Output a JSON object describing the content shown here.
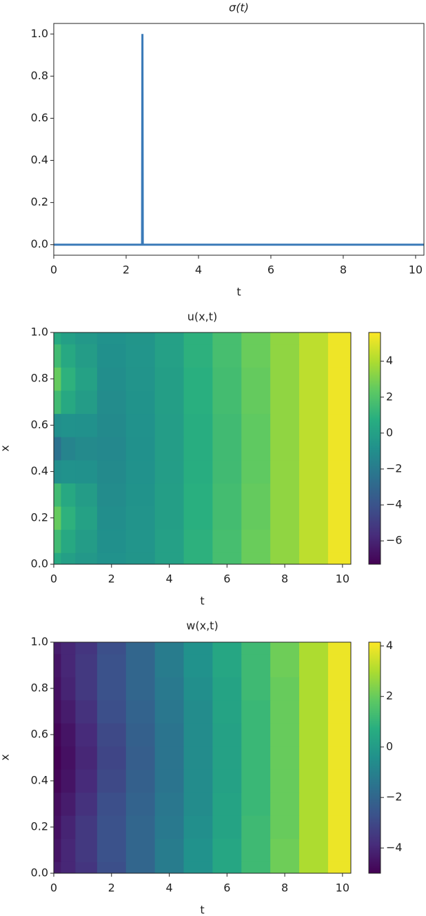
{
  "chart_data": [
    {
      "type": "line",
      "title": "σ(t)",
      "xlabel": "t",
      "x": [
        0,
        2.44,
        2.45,
        2.46,
        10.23
      ],
      "values": [
        0,
        0,
        1,
        0,
        0
      ],
      "color": "#3a7ab8",
      "xlim": [
        0,
        10.23
      ],
      "ylim": [
        -0.05,
        1.05
      ],
      "xticks": [
        0,
        2,
        4,
        6,
        8,
        10
      ],
      "yticks": [
        {
          "value": 0,
          "label": "0.0"
        },
        0.2,
        0.4,
        0.6,
        0.8,
        {
          "value": 1,
          "label": "1.0"
        }
      ]
    },
    {
      "type": "heatmap",
      "title": "u(x,t)",
      "xlabel": "t",
      "ylabel": "x",
      "colormap": "viridis",
      "x": [
        0,
        0.5,
        1,
        2,
        3,
        4,
        5,
        6,
        7,
        8,
        9,
        10
      ],
      "y": [
        0,
        0.1,
        0.2,
        0.3,
        0.4,
        0.5,
        0.6,
        0.7,
        0.8,
        0.9,
        1
      ],
      "z": [
        [
          0.5,
          -0.05,
          -0.48,
          -0.8,
          -0.6,
          0,
          0.9,
          1.7,
          2.6,
          3.4,
          4.3,
          5.3
        ],
        [
          1.5,
          0.45,
          -0.23,
          -0.9,
          -0.65,
          0,
          0.9,
          1.7,
          2.6,
          3.4,
          4.3,
          5.3
        ],
        [
          2.5,
          0.95,
          0.03,
          -1.0,
          -0.7,
          -0.1,
          0.8,
          1.6,
          2.5,
          3.4,
          4.3,
          5.3
        ],
        [
          1.5,
          0.45,
          -0.23,
          -1.1,
          -0.75,
          -0.1,
          0.8,
          1.6,
          2.5,
          3.4,
          4.3,
          5.3
        ],
        [
          -1,
          -0.8,
          -0.85,
          -1.2,
          -0.8,
          -0.2,
          0.7,
          1.5,
          2.4,
          3.4,
          4.3,
          5.3
        ],
        [
          -2.5,
          -1.55,
          -1.23,
          -1.3,
          -0.85,
          -0.2,
          0.7,
          1.5,
          2.4,
          3.4,
          4.3,
          5.3
        ],
        [
          -1,
          -0.8,
          -0.85,
          -1.2,
          -0.8,
          -0.2,
          0.7,
          1.5,
          2.4,
          3.4,
          4.3,
          5.3
        ],
        [
          1.5,
          0.45,
          -0.23,
          -1.1,
          -0.75,
          -0.1,
          0.8,
          1.6,
          2.5,
          3.4,
          4.3,
          5.3
        ],
        [
          2.5,
          0.95,
          0.03,
          -1.0,
          -0.7,
          -0.1,
          0.8,
          1.6,
          2.5,
          3.4,
          4.3,
          5.3
        ],
        [
          1.5,
          0.45,
          -0.23,
          -0.9,
          -0.65,
          0,
          0.9,
          1.7,
          2.6,
          3.4,
          4.3,
          5.3
        ],
        [
          0.5,
          -0.05,
          -0.48,
          -0.8,
          -0.6,
          0,
          0.9,
          1.7,
          2.6,
          3.4,
          4.3,
          5.3
        ]
      ],
      "xlim": [
        0,
        10.29
      ],
      "ylim": [
        0,
        1
      ],
      "clim": [
        -7.3,
        5.6
      ],
      "xticks": [
        0,
        2,
        4,
        6,
        8,
        10
      ],
      "yticks": [
        {
          "value": 0,
          "label": "0.0"
        },
        0.2,
        0.4,
        0.6,
        0.8,
        {
          "value": 1,
          "label": "1.0"
        }
      ],
      "cticks": [
        {
          "value": -6,
          "label": "−6"
        },
        {
          "value": -4,
          "label": "−4"
        },
        {
          "value": -2,
          "label": "−2"
        },
        0,
        2,
        4
      ]
    },
    {
      "type": "heatmap",
      "title": "w(x,t)",
      "xlabel": "t",
      "ylabel": "x",
      "colormap": "viridis",
      "x": [
        0,
        0.5,
        1,
        2,
        3,
        4,
        5,
        6,
        7,
        8,
        9,
        10
      ],
      "y": [
        0,
        0.1,
        0.2,
        0.3,
        0.4,
        0.5,
        0.6,
        0.7,
        0.8,
        0.9,
        1
      ],
      "z": [
        [
          -4.3,
          -4.0,
          -3.6,
          -2.8,
          -2.0,
          -1.2,
          -0.4,
          0.4,
          1.2,
          2.1,
          3.0,
          3.9
        ],
        [
          -4.5,
          -4.0,
          -3.5,
          -2.7,
          -2.0,
          -1.2,
          -0.4,
          0.4,
          1.2,
          2.1,
          3.0,
          3.9
        ],
        [
          -4.6,
          -4.1,
          -3.5,
          -2.7,
          -2.0,
          -1.3,
          -0.5,
          0.3,
          1.2,
          2.0,
          3.0,
          3.9
        ],
        [
          -4.7,
          -4.3,
          -3.7,
          -2.8,
          -2.1,
          -1.4,
          -0.6,
          0.3,
          1.1,
          2.0,
          3.0,
          3.9
        ],
        [
          -4.9,
          -4.5,
          -3.9,
          -3.0,
          -2.2,
          -1.5,
          -0.6,
          0.2,
          1.1,
          2.0,
          3.0,
          3.9
        ],
        [
          -5.0,
          -4.6,
          -4.0,
          -3.1,
          -2.3,
          -1.5,
          -0.6,
          0.2,
          1.1,
          2.0,
          3.0,
          3.9
        ],
        [
          -4.9,
          -4.5,
          -3.9,
          -3.0,
          -2.2,
          -1.5,
          -0.6,
          0.2,
          1.1,
          2.0,
          3.0,
          3.9
        ],
        [
          -4.7,
          -4.3,
          -3.7,
          -2.8,
          -2.1,
          -1.4,
          -0.6,
          0.3,
          1.1,
          2.0,
          3.0,
          3.9
        ],
        [
          -4.6,
          -4.1,
          -3.5,
          -2.7,
          -2.0,
          -1.3,
          -0.5,
          0.3,
          1.2,
          2.0,
          3.0,
          3.9
        ],
        [
          -4.5,
          -4.0,
          -3.5,
          -2.7,
          -2.0,
          -1.2,
          -0.4,
          0.4,
          1.2,
          2.1,
          3.0,
          3.9
        ],
        [
          -4.3,
          -4.0,
          -3.6,
          -2.8,
          -2.0,
          -1.2,
          -0.4,
          0.4,
          1.2,
          2.1,
          3.0,
          3.9
        ]
      ],
      "xlim": [
        0,
        10.29
      ],
      "ylim": [
        0,
        1
      ],
      "clim": [
        -5.0,
        4.15
      ],
      "xticks": [
        0,
        2,
        4,
        6,
        8,
        10
      ],
      "yticks": [
        {
          "value": 0,
          "label": "0.0"
        },
        0.2,
        0.4,
        0.6,
        0.8,
        {
          "value": 1,
          "label": "1.0"
        }
      ],
      "cticks": [
        {
          "value": -4,
          "label": "−4"
        },
        {
          "value": -2,
          "label": "−2"
        },
        0,
        2,
        4
      ]
    }
  ]
}
